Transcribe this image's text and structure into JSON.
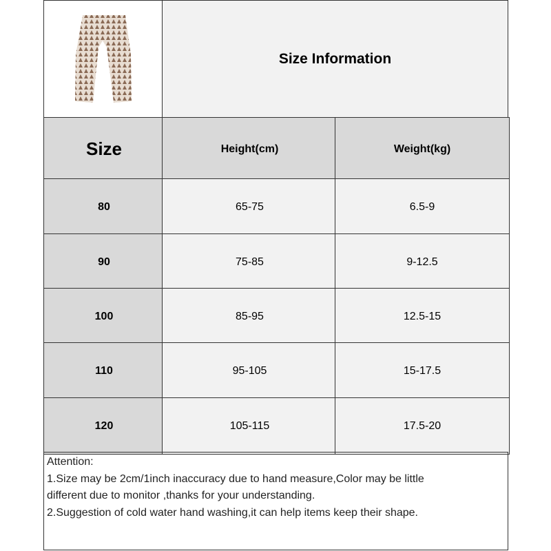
{
  "header": {
    "title": "Size Information",
    "image": "pants-product-image"
  },
  "table": {
    "columns": [
      "Size",
      "Height(cm)",
      "Weight(kg)"
    ],
    "rows": [
      [
        "80",
        "65-75",
        "6.5-9"
      ],
      [
        "90",
        "75-85",
        "9-12.5"
      ],
      [
        "100",
        "85-95",
        "12.5-15"
      ],
      [
        "110",
        "95-105",
        "15-17.5"
      ],
      [
        "120",
        "105-115",
        "17.5-20"
      ]
    ]
  },
  "notes": {
    "heading": "Attention:",
    "lines": [
      "1.Size may be 2cm/1inch inaccuracy due to hand measure,Color may be little",
      "different due to monitor ,thanks for your understanding.",
      "2.Suggestion of cold water hand washing,it can help items keep their shape."
    ]
  },
  "colors": {
    "header_bg": "#d9d9d9",
    "cell_bg": "#f2f2f2",
    "border": "#333333"
  }
}
